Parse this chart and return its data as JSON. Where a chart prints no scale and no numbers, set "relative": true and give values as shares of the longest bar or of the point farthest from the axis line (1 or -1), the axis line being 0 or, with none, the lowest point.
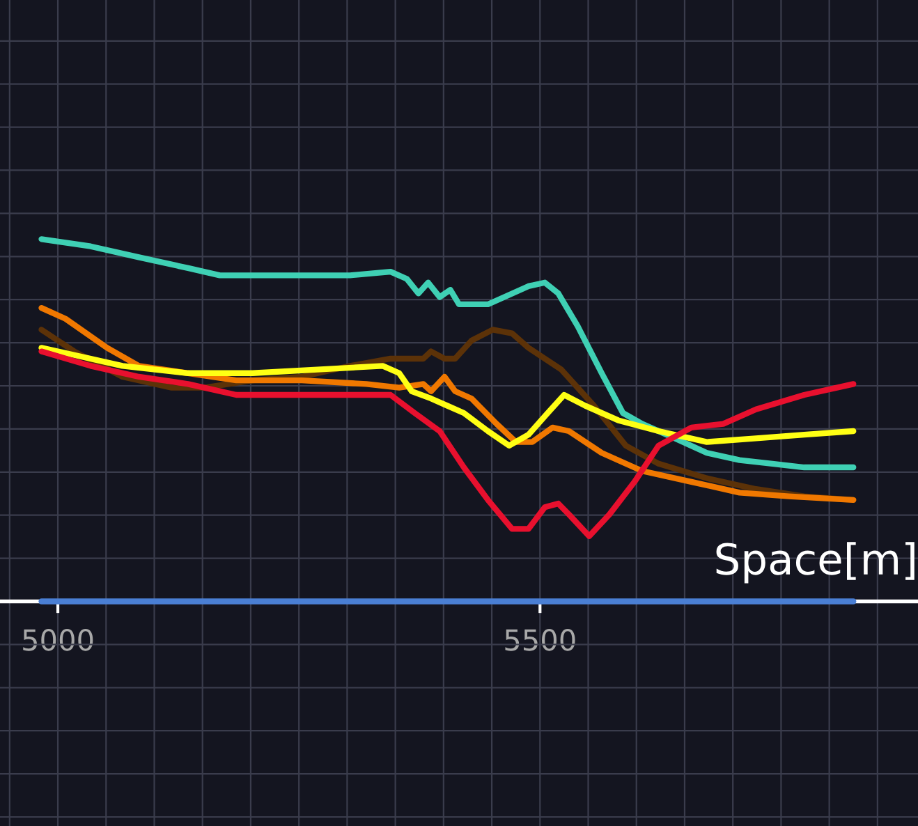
{
  "chart_data": {
    "type": "line",
    "relative": true,
    "xlabel": "Space[m]",
    "xlim": [
      4940,
      5892
    ],
    "xticks": [
      5000,
      5500
    ],
    "grid": true,
    "legend": false,
    "series": [
      {
        "color": "#3fd0b4",
        "x": [
          4983,
          5034,
          5084,
          5135,
          5168,
          5202,
          5253,
          5303,
          5345,
          5362,
          5374,
          5384,
          5396,
          5407,
          5416,
          5429,
          5446,
          5463,
          5488,
          5505,
          5519,
          5539,
          5564,
          5586,
          5606,
          5640,
          5673,
          5707,
          5741,
          5774,
          5825
        ],
        "values": [
          1.0,
          0.98,
          0.95,
          0.92,
          0.9,
          0.9,
          0.9,
          0.9,
          0.91,
          0.89,
          0.85,
          0.88,
          0.84,
          0.86,
          0.82,
          0.82,
          0.82,
          0.84,
          0.87,
          0.88,
          0.85,
          0.76,
          0.63,
          0.52,
          0.49,
          0.45,
          0.41,
          0.39,
          0.38,
          0.37,
          0.37
        ]
      },
      {
        "color": "#5c3208",
        "x": [
          4983,
          5017,
          5067,
          5118,
          5152,
          5202,
          5253,
          5303,
          5345,
          5379,
          5387,
          5401,
          5412,
          5429,
          5451,
          5471,
          5488,
          5522,
          5556,
          5589,
          5623,
          5673,
          5724,
          5774,
          5825
        ],
        "values": [
          0.75,
          0.69,
          0.62,
          0.59,
          0.59,
          0.61,
          0.62,
          0.65,
          0.67,
          0.67,
          0.69,
          0.67,
          0.67,
          0.72,
          0.75,
          0.74,
          0.7,
          0.64,
          0.54,
          0.43,
          0.38,
          0.34,
          0.31,
          0.29,
          0.28
        ]
      },
      {
        "color": "#f07800",
        "x": [
          4983,
          5008,
          5051,
          5084,
          5135,
          5185,
          5253,
          5320,
          5354,
          5379,
          5387,
          5401,
          5412,
          5429,
          5455,
          5475,
          5492,
          5513,
          5530,
          5564,
          5606,
          5657,
          5707,
          5758,
          5825
        ],
        "values": [
          0.81,
          0.78,
          0.7,
          0.65,
          0.63,
          0.61,
          0.61,
          0.6,
          0.59,
          0.6,
          0.58,
          0.62,
          0.58,
          0.56,
          0.49,
          0.44,
          0.44,
          0.48,
          0.47,
          0.41,
          0.36,
          0.33,
          0.3,
          0.29,
          0.28
        ]
      },
      {
        "color": "#ffff14",
        "x": [
          4983,
          5017,
          5067,
          5135,
          5202,
          5269,
          5337,
          5354,
          5367,
          5387,
          5404,
          5421,
          5446,
          5468,
          5488,
          5508,
          5525,
          5547,
          5581,
          5623,
          5673,
          5724,
          5774,
          5825
        ],
        "values": [
          0.7,
          0.68,
          0.65,
          0.63,
          0.63,
          0.64,
          0.65,
          0.63,
          0.58,
          0.56,
          0.54,
          0.52,
          0.47,
          0.43,
          0.46,
          0.52,
          0.57,
          0.54,
          0.5,
          0.47,
          0.44,
          0.45,
          0.46,
          0.47
        ]
      },
      {
        "color": "#e8102e",
        "x": [
          4983,
          5034,
          5084,
          5135,
          5185,
          5253,
          5320,
          5345,
          5370,
          5396,
          5421,
          5446,
          5471,
          5488,
          5505,
          5519,
          5530,
          5551,
          5572,
          5598,
          5623,
          5657,
          5690,
          5724,
          5774,
          5825
        ],
        "values": [
          0.69,
          0.65,
          0.62,
          0.6,
          0.57,
          0.57,
          0.57,
          0.57,
          0.52,
          0.47,
          0.37,
          0.28,
          0.2,
          0.2,
          0.26,
          0.27,
          0.24,
          0.18,
          0.24,
          0.33,
          0.43,
          0.48,
          0.49,
          0.53,
          0.57,
          0.6
        ]
      },
      {
        "color": "#4a7fd4",
        "x": [
          4983,
          5825
        ],
        "values": [
          0,
          0
        ]
      }
    ]
  }
}
